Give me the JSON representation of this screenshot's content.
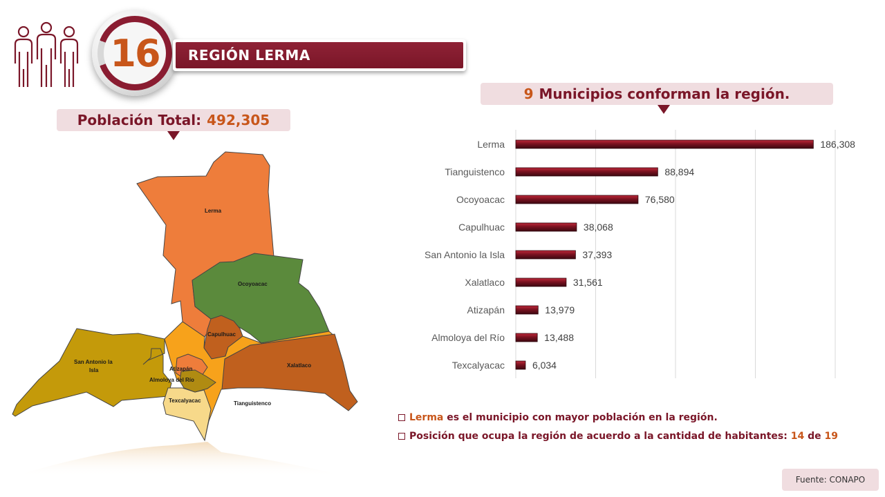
{
  "header": {
    "region_number": "16",
    "region_title": "REGIÓN LERMA"
  },
  "population": {
    "label": "Población Total:",
    "value": "492,305"
  },
  "map": {
    "municipality_labels": {
      "lerma": "Lerma",
      "ocoyoacac": "Ocoyoacac",
      "capulhuac": "Capulhuac",
      "san_antonio_line1": "San Antonio la",
      "san_antonio_line2": "Isla",
      "atizapan": "Atizapán",
      "almoloya": "Almoloya del Río",
      "texcalyacac": "Texcalyacac",
      "tianguistenco": "Tianguistenco",
      "xalatlaco": "Xalatlaco"
    },
    "colors": {
      "lerma": "#ee7d3b",
      "ocoyoacac": "#5b8a3c",
      "capulhuac": "#c0601e",
      "san_antonio": "#c49a0a",
      "atizapan": "#ee7d3b",
      "almoloya": "#b08b12",
      "texcalyacac": "#f7d98a",
      "tianguistenco": "#f7a21b",
      "xalatlaco": "#c0601e"
    }
  },
  "municipios": {
    "count": "9",
    "text": "Municipios conforman la región."
  },
  "chart_data": {
    "type": "bar",
    "orientation": "horizontal",
    "categories": [
      "Lerma",
      "Tianguistenco",
      "Ocoyoacac",
      "Capulhuac",
      "San Antonio la Isla",
      "Xalatlaco",
      "Atizapán",
      "Almoloya del Río",
      "Texcalyacac"
    ],
    "values": [
      186308,
      88894,
      76580,
      38068,
      37393,
      31561,
      13979,
      13488,
      6034
    ],
    "value_labels": [
      "186,308",
      "88,894",
      "76,580",
      "38,068",
      "37,393",
      "31,561",
      "13,979",
      "13,488",
      "6,034"
    ],
    "xlim": [
      0,
      200000
    ],
    "grid": true,
    "bar_color": "#7a1220",
    "title": "",
    "xlabel": "",
    "ylabel": ""
  },
  "notes": {
    "note1_highlight": "Lerma",
    "note1_text": "es el municipio con mayor población en la región.",
    "note2_text": "Posición que ocupa la región de acuerdo a la cantidad de habitantes:",
    "note2_rank": "14",
    "note2_of": "de",
    "note2_total": "19"
  },
  "source": "Fuente: CONAPO",
  "icons": {
    "people": "people-group-icon"
  }
}
